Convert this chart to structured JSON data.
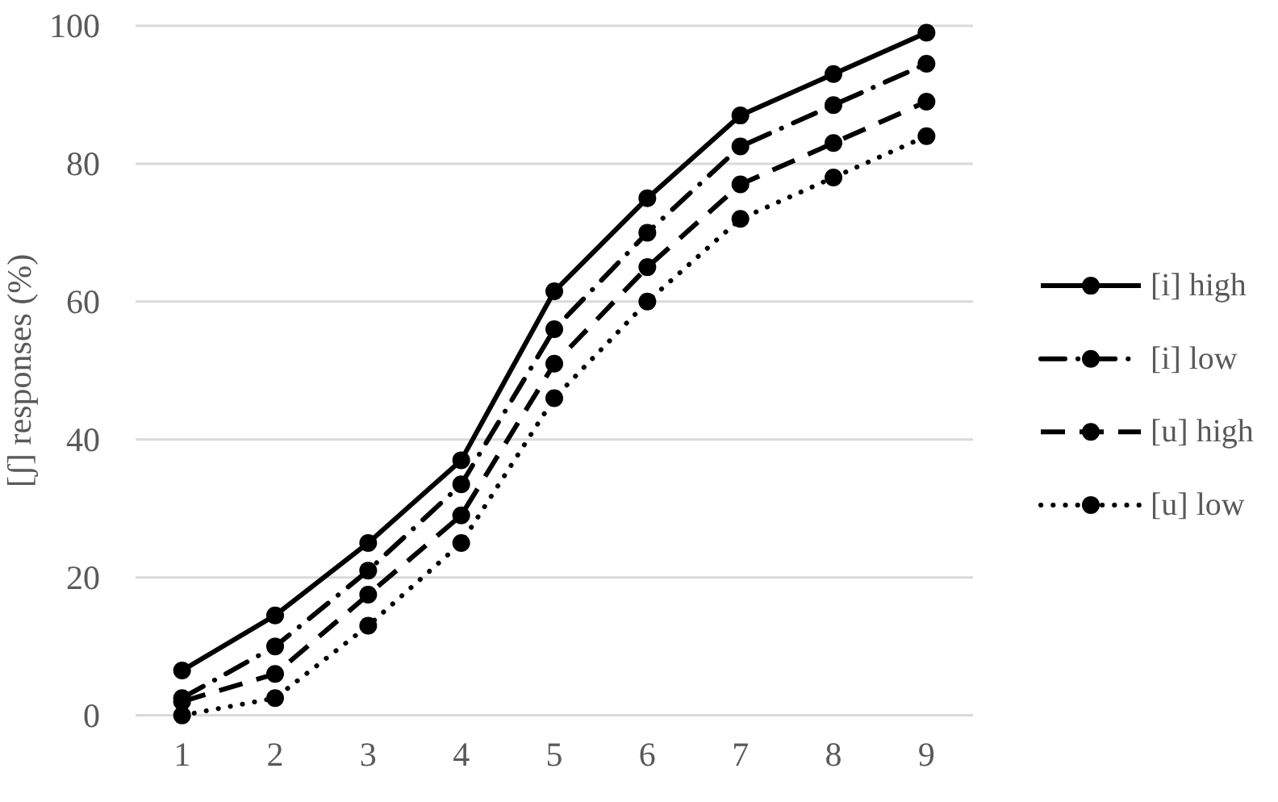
{
  "chart_data": {
    "type": "line",
    "ylabel": "[ʃ] responses (%)",
    "categories": [
      "1",
      "2",
      "3",
      "4",
      "5",
      "6",
      "7",
      "8",
      "9"
    ],
    "series": [
      {
        "name": "[i] high",
        "color": "#000000",
        "line_style": "solid",
        "values": [
          6.5,
          14.5,
          25,
          37,
          61.5,
          75,
          87,
          93,
          99
        ]
      },
      {
        "name": "[i] low",
        "color": "#000000",
        "line_style": "dashdot",
        "values": [
          2.5,
          10,
          21,
          33.5,
          56,
          70,
          82.5,
          88.5,
          94.5
        ]
      },
      {
        "name": "[u] high",
        "color": "#000000",
        "line_style": "dashed",
        "values": [
          2,
          6,
          17.5,
          29,
          51,
          65,
          77,
          83,
          89
        ]
      },
      {
        "name": "[u] low",
        "color": "#000000",
        "line_style": "dotted",
        "values": [
          0,
          2.5,
          13,
          25,
          46,
          60,
          72,
          78,
          84
        ]
      }
    ],
    "ylim": [
      0,
      100
    ],
    "yticks": [
      0,
      20,
      40,
      60,
      80,
      100
    ],
    "grid": "y",
    "legend": "right",
    "marker": "circle"
  }
}
